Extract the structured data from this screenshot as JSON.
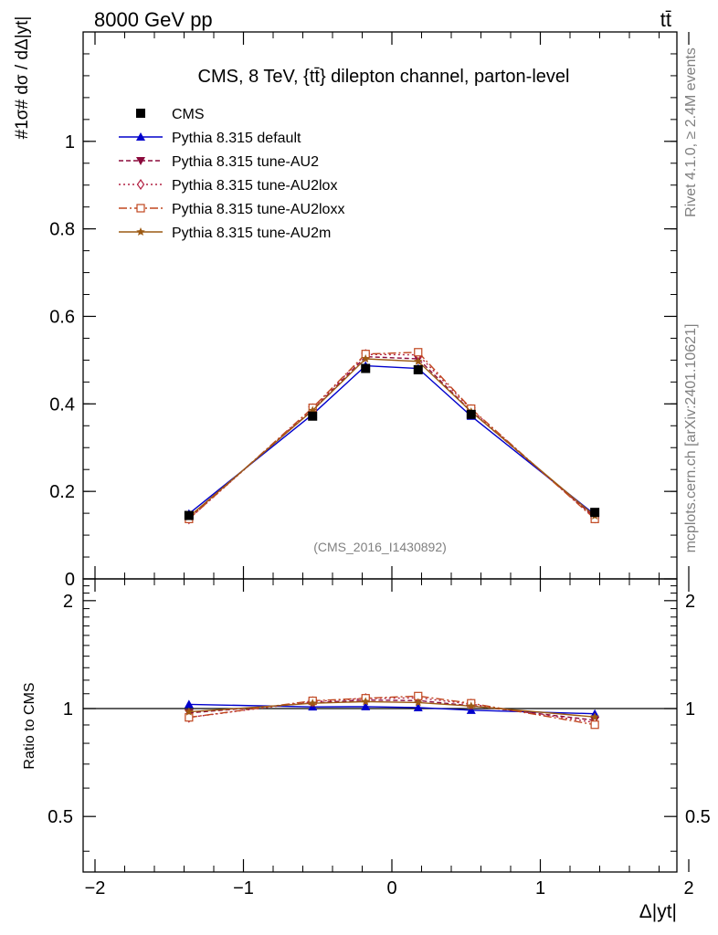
{
  "header": {
    "left": "8000 GeV pp",
    "right": "tt̄"
  },
  "side_labels": {
    "rivet": "Rivet 4.1.0, ≥ 2.4M events",
    "mcplots": "mcplots.cern.ch [arXiv:2401.10621]"
  },
  "chart_data": {
    "type": "line",
    "title": "CMS, 8 TeV, {tt̄} dilepton channel, parton-level",
    "analysis_id": "(CMS_2016_I1430892)",
    "xlabel": "Δ|yt|",
    "ylabel": "#1σ# dσ / dΔ|yt|",
    "ratio_ylabel": "Ratio to CMS",
    "xlim": [
      -2.0,
      2.0
    ],
    "ylim": [
      0,
      1.25
    ],
    "ratio_ylim": [
      0.35,
      2.3
    ],
    "x_ticks": [
      -2,
      -1,
      0,
      1,
      2
    ],
    "x_tick_labels": [
      "−2",
      "−1",
      "0",
      "1",
      "2"
    ],
    "y_ticks": [
      0,
      0.2,
      0.4,
      0.6,
      0.8,
      1
    ],
    "y_tick_labels": [
      "0",
      "0.2",
      "0.4",
      "0.6",
      "0.8",
      "1"
    ],
    "ratio_ticks": [
      0.5,
      1,
      2
    ],
    "ratio_tick_labels": [
      "0.5",
      "1",
      "2"
    ],
    "x": [
      -1.367,
      -0.534,
      -0.177,
      0.177,
      0.534,
      1.367
    ],
    "data": {
      "name": "CMS",
      "values": [
        0.145,
        0.372,
        0.481,
        0.478,
        0.376,
        0.152
      ]
    },
    "series": [
      {
        "name": "Pythia 8.315 default",
        "color": "#0000cc",
        "marker": "triangle-up",
        "dash": "",
        "values": [
          0.149,
          0.376,
          0.487,
          0.481,
          0.372,
          0.147
        ]
      },
      {
        "name": "Pythia 8.315 tune-AU2",
        "color": "#8b0a3c",
        "marker": "triangle-down",
        "dash": "5,3",
        "values": [
          0.141,
          0.386,
          0.508,
          0.503,
          0.383,
          0.141
        ]
      },
      {
        "name": "Pythia 8.315 tune-AU2lox",
        "color": "#b22244",
        "marker": "diamond-open",
        "dash": "2,3",
        "values": [
          0.137,
          0.389,
          0.513,
          0.512,
          0.387,
          0.139
        ]
      },
      {
        "name": "Pythia 8.315 tune-AU2loxx",
        "color": "#c0461e",
        "marker": "square-open",
        "dash": "9,3,2,3",
        "values": [
          0.137,
          0.391,
          0.514,
          0.518,
          0.389,
          0.137
        ]
      },
      {
        "name": "Pythia 8.315 tune-AU2m",
        "color": "#9c5a14",
        "marker": "star",
        "dash": "",
        "values": [
          0.142,
          0.385,
          0.503,
          0.497,
          0.382,
          0.144
        ]
      }
    ],
    "legend_position": "top-left",
    "grid": false
  }
}
